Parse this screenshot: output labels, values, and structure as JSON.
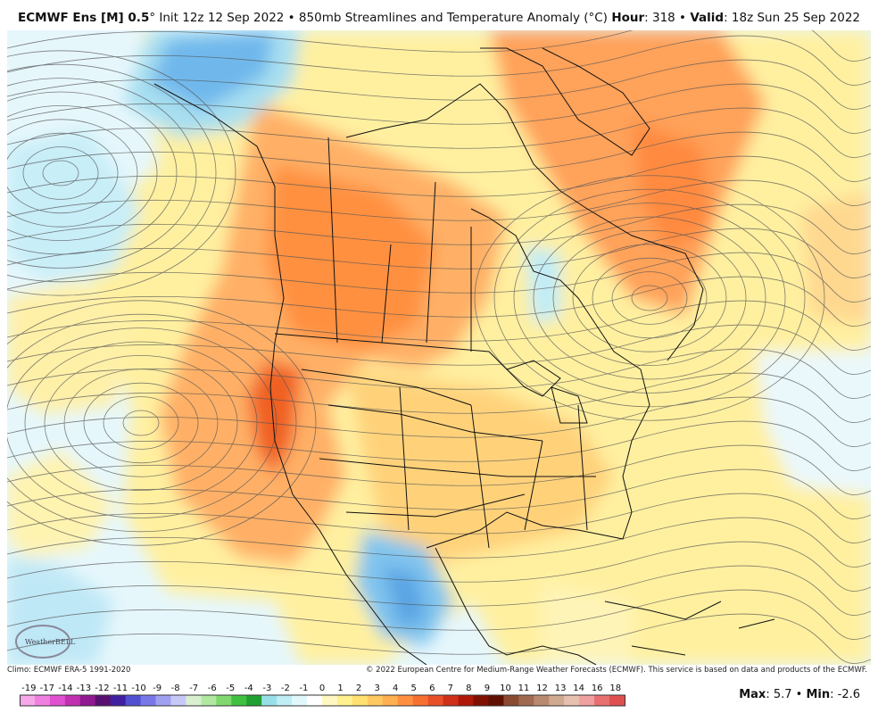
{
  "header": {
    "left": [
      {
        "text": "ECMWF Ens [M] 0.5",
        "bold": true
      },
      {
        "text": "° Init 12z 12 Sep 2022 • 850mb Streamlines and Temperature Anomaly (°C)",
        "bold": false
      }
    ],
    "right": [
      {
        "text": "Hour",
        "bold": true
      },
      {
        "text": ": 318 • ",
        "bold": false
      },
      {
        "text": "Valid",
        "bold": true
      },
      {
        "text": ": 18z Sun 25 Sep 2022",
        "bold": false
      }
    ]
  },
  "logo": "WeatherBELL",
  "footer": {
    "climo": "Climo: ECMWF ERA-5 1991-2020",
    "copyright": "© 2022 European Centre for Medium-Range Weather Forecasts (ECMWF). This service is based on data and products of the ECMWF."
  },
  "stats": [
    {
      "text": "Max",
      "bold": true
    },
    {
      "text": ": 5.7 • ",
      "bold": false
    },
    {
      "text": "Min",
      "bold": true
    },
    {
      "text": ": -2.6",
      "bold": false
    }
  ],
  "colorbar": {
    "labels": [
      "-19",
      "-17",
      "-14",
      "-13",
      "-12",
      "-11",
      "-10",
      "-9",
      "-8",
      "-7",
      "-6",
      "-5",
      "-4",
      "-3",
      "-2",
      "-1",
      "0",
      "1",
      "2",
      "3",
      "4",
      "5",
      "6",
      "7",
      "8",
      "9",
      "10",
      "11",
      "12",
      "13",
      "14",
      "16",
      "18"
    ],
    "colors": [
      "#f7a8e8",
      "#f080e0",
      "#e050d0",
      "#c030b0",
      "#901890",
      "#5a1070",
      "#4020a0",
      "#5050d0",
      "#7878e8",
      "#a0a0f0",
      "#c8c8f8",
      "#d8f0d0",
      "#b0e8a0",
      "#80d870",
      "#40c040",
      "#20a030",
      "#98e0e8",
      "#c0eef4",
      "#e0f8fc",
      "#ffffff",
      "#fff8c0",
      "#fff090",
      "#ffe070",
      "#ffc860",
      "#ffb050",
      "#ff9040",
      "#f87030",
      "#e85028",
      "#d03018",
      "#b01808",
      "#801000",
      "#601000",
      "#8a4a30",
      "#a06a50",
      "#b88a70",
      "#d0aa90",
      "#e8c0b0",
      "#f0a0a0",
      "#e87070",
      "#e05050"
    ]
  }
}
